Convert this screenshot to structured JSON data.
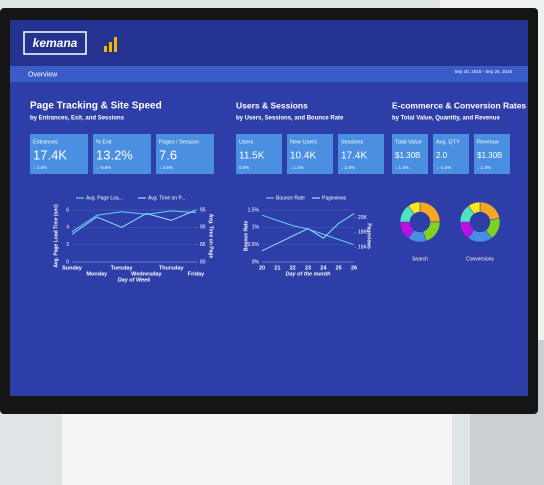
{
  "header": {
    "logo": "kemana",
    "tab": "Overview",
    "date": "Sep 20, 2016 - Sep 26, 2016"
  },
  "panels": [
    {
      "title": "Page Tracking & Site Speed",
      "subtitle": "by Entrances, Exit, and Sessions",
      "kpis": [
        {
          "label": "Entrances",
          "value": "17.4K",
          "change": "↓ 2.4%"
        },
        {
          "label": "% Exit",
          "value": "13.2%",
          "change": "↓ -0.9%"
        },
        {
          "label": "Pages / Session",
          "value": "7.6",
          "change": "↓ 3.4%"
        }
      ],
      "chart": {
        "type": "line",
        "categories": [
          "Sunday",
          "Monday",
          "Tuesday",
          "Wednesday",
          "Thursday",
          "Friday"
        ],
        "series": [
          {
            "name": "Avg. Page Loa...",
            "color": "#5fd0f0",
            "values": [
              3.5,
              5.4,
              5.8,
              5.5,
              5.9,
              5.7
            ]
          },
          {
            "name": "Avg. Time on P...",
            "color": "#8fe0ff",
            "axis": "y2",
            "values": [
              88,
              93,
              90,
              94,
              92,
              95
            ]
          }
        ],
        "ylim": [
          0,
          6
        ],
        "yticks": [
          0,
          2,
          4,
          6
        ],
        "y2lim": [
          80,
          95
        ],
        "y2ticks": [
          80,
          85,
          90,
          95
        ],
        "ylabel": "Avg. Page Load Time (sec)",
        "y2label": "Avg. Time on Page",
        "xlabel": "Day of Week"
      }
    },
    {
      "title": "Users & Sessions",
      "subtitle": "by Users, Sessions, and Bounce Rate",
      "kpis": [
        {
          "label": "Users",
          "value": "11.5K",
          "change": "0.0%"
        },
        {
          "label": "New Users",
          "value": "10.4K",
          "change": "↓ 1.4%"
        },
        {
          "label": "Sessions",
          "value": "17.4K",
          "change": "↓ 2.4%"
        }
      ],
      "chart": {
        "type": "line",
        "categories": [
          "20",
          "21",
          "22",
          "23",
          "24",
          "25",
          "26"
        ],
        "series": [
          {
            "name": "Bounce Rate",
            "color": "#5fd0f0",
            "values": [
              1.35,
              1.2,
              1.05,
              0.95,
              0.8,
              0.65,
              0.5
            ]
          },
          {
            "name": "Pageviews",
            "color": "#8fe0ff",
            "axis": "y2",
            "values": [
              15500,
              16500,
              17500,
              18500,
              17200,
              19200,
              20500
            ]
          }
        ],
        "ylim": [
          0,
          1.5
        ],
        "yticks": [
          {
            "value": 0,
            "label": "0%"
          },
          {
            "value": 0.5,
            "label": "0.5%"
          },
          {
            "value": 1,
            "label": "1%"
          },
          {
            "value": 1.5,
            "label": "1.5%"
          }
        ],
        "y2lim": [
          14000,
          21000
        ],
        "y2ticks": [
          {
            "value": 16000,
            "label": "16K"
          },
          {
            "value": 18000,
            "label": "18K"
          },
          {
            "value": 20000,
            "label": "20K"
          }
        ],
        "ylabel": "Bounce Rate",
        "y2label": "Pageviews",
        "xlabel": "Day of the month"
      }
    },
    {
      "title": "E-commerce & Conversion Rates",
      "subtitle": "by Total Value, Quantity, and Revenue",
      "kpis": [
        {
          "label": "Total Value",
          "value": "$1.30B",
          "change": "↓ 1.4%"
        },
        {
          "label": "Avg. QTY",
          "value": "2.0",
          "change": "↓ -1.4%"
        },
        {
          "label": "Revenue",
          "value": "$1.30B",
          "change": "↓ 1.4%"
        }
      ],
      "donuts": [
        {
          "type": "pie",
          "label": "Search",
          "values": [
            25,
            20,
            15,
            15,
            15,
            10
          ],
          "colors": [
            "#f5a623",
            "#7ed321",
            "#4a90e2",
            "#bd10e0",
            "#50e3c2",
            "#f8e71c"
          ]
        },
        {
          "type": "pie",
          "label": "Conversions",
          "values": [
            22,
            18,
            20,
            15,
            15,
            10
          ],
          "colors": [
            "#f5a623",
            "#7ed321",
            "#4a90e2",
            "#bd10e0",
            "#50e3c2",
            "#f8e71c"
          ]
        }
      ]
    }
  ]
}
